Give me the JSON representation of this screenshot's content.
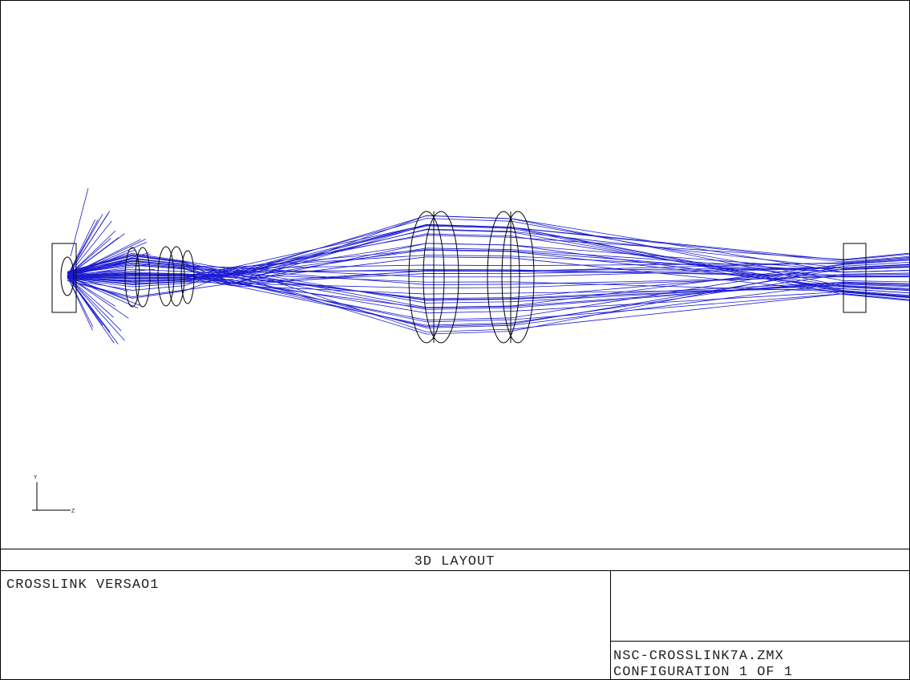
{
  "title_bar": "3D LAYOUT",
  "description": "CROSSLINK VERSAO1",
  "file_name": "NSC-CROSSLINK7A.ZMX",
  "configuration": "CONFIGURATION 1 OF 1",
  "axes": {
    "y": "Y",
    "z": "Z"
  }
}
